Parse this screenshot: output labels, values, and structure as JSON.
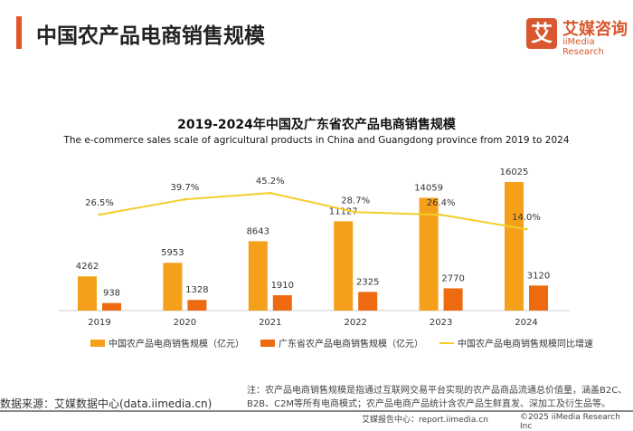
{
  "header": {
    "title": "中国农产品电商销售规模"
  },
  "logo": {
    "mark": "艾",
    "cn": "艾媒咨询",
    "en": "iiMedia Research"
  },
  "chart_data": {
    "type": "bar",
    "title": "2019-2024年中国及广东省农产品电商销售规模",
    "subtitle": "The e-commerce sales scale of agricultural products in China and Guangdong province from 2019 to 2024",
    "categories": [
      "2019",
      "2020",
      "2021",
      "2022",
      "2023",
      "2024"
    ],
    "series": [
      {
        "name": "中国农产品电商销售规模（亿元）",
        "type": "bar",
        "color": "#f5a01a",
        "values": [
          4262,
          5953,
          8643,
          11127,
          14059,
          16025
        ]
      },
      {
        "name": "广东省农产品电商销售规模（亿元）",
        "type": "bar",
        "color": "#ee6a10",
        "values": [
          938,
          1328,
          1910,
          2325,
          2770,
          3120
        ]
      },
      {
        "name": "中国农产品电商销售规模同比增速",
        "type": "line",
        "color": "#f4cd2a",
        "values": [
          26.5,
          39.7,
          45.2,
          28.7,
          26.4,
          14.0
        ],
        "labels": [
          "26.5%",
          "39.7%",
          "45.2%",
          "28.7%",
          "26.4%",
          "14.0%"
        ]
      }
    ],
    "legend": "bottom",
    "grid": false
  },
  "footer": {
    "source": "数据来源：艾媒数据中心(data.iimedia.cn)",
    "note1": "注：农产品电商销售规模是指通过互联网交易平台实现的农产品商品流通总价值量，涵盖B2C、",
    "note2": "B2B、C2M等所有电商模式；农产品电商产品统计含农产品生鲜直发、深加工及衍生品等。",
    "report": "艾媒报告中心：report.iimedia.cn",
    "copyright": "©2025  iiMedia Research  Inc"
  }
}
